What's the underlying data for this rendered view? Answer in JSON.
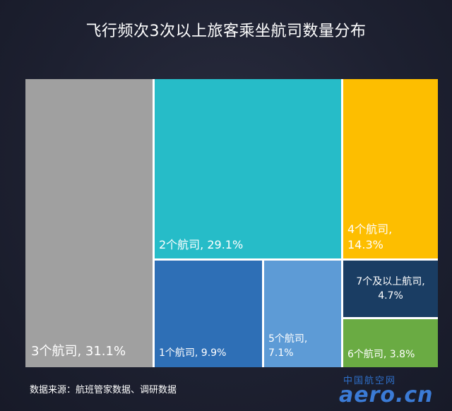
{
  "title": "飞行频次3次以上旅客乘坐航司数量分布",
  "source": "数据来源：航班管家数据、调研数据",
  "watermark": {
    "cn": "中国航空网",
    "en": "aero.cn"
  },
  "chart_data": {
    "type": "treemap",
    "title": "飞行频次3次以上旅客乘坐航司数量分布",
    "items": [
      {
        "name": "3个航司",
        "value": 31.1,
        "label": "3个航司, 31.1%",
        "color": "#a0a0a0"
      },
      {
        "name": "2个航司",
        "value": 29.1,
        "label": "2个航司, 29.1%",
        "color": "#26bcc8"
      },
      {
        "name": "4个航司",
        "value": 14.3,
        "label": "4个航司,\n14.3%",
        "color": "#fdbe00"
      },
      {
        "name": "1个航司",
        "value": 9.9,
        "label": "1个航司, 9.9%",
        "color": "#2e6fb6"
      },
      {
        "name": "5个航司",
        "value": 7.1,
        "label": "5个航司,\n7.1%",
        "color": "#5d9bd6"
      },
      {
        "name": "7个及以上航司",
        "value": 4.7,
        "label": "7个及以上航司,\n4.7%",
        "color": "#1a3d63"
      },
      {
        "name": "6个航司",
        "value": 3.8,
        "label": "6个航司, 3.8%",
        "color": "#6aab43"
      }
    ]
  }
}
